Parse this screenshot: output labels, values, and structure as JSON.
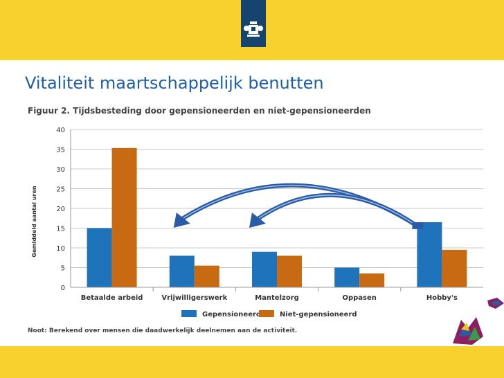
{
  "slide": {
    "title": "Vitaliteit maartschappelijk benutten"
  },
  "colors": {
    "header": "#f8d12e",
    "logo": "#15446f",
    "title": "#1d5ea8",
    "gepensioneerd": "#1f73ba",
    "niet_gepensioneerd": "#c76a12",
    "arrow": "#2b5aa6"
  },
  "icons": {
    "logo": "rijksoverheid-crest-icon",
    "deco_right": "decorative-shape-icon",
    "deco_bottom": "decorative-shape-icon"
  },
  "chart_data": {
    "type": "bar",
    "title": "Figuur 2. Tijdsbesteding door gepensioneerden en niet-gepensioneerden",
    "ylabel": "Gemiddeld aantal uren",
    "xlabel": "",
    "ylim": [
      0,
      40
    ],
    "yticks": [
      "0",
      "5",
      "10",
      "15",
      "20",
      "25",
      "30",
      "35",
      "40"
    ],
    "grid": true,
    "legend_position": "bottom",
    "categories": [
      "Betaalde arbeid",
      "Vrijwilligerswerk",
      "Mantelzorg",
      "Oppasen",
      "Hobby's"
    ],
    "series": [
      {
        "name": "Gepensioneerd",
        "values": [
          15,
          8,
          9,
          5,
          16.5
        ]
      },
      {
        "name": "Niet-gepensioneerd",
        "values": [
          35.3,
          5.5,
          8,
          3.5,
          9.5
        ]
      }
    ],
    "note": "Noot: Berekend over mensen die daadwerkelijk deelnemen aan de activiteit."
  }
}
